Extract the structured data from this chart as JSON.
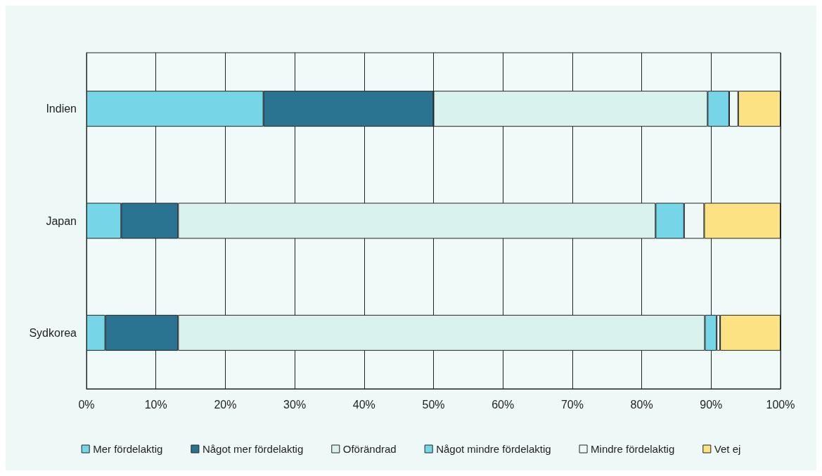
{
  "chart_data": {
    "type": "bar",
    "orientation": "horizontal",
    "stacked": true,
    "categories": [
      "Indien",
      "Japan",
      "Sydkorea"
    ],
    "series": [
      {
        "name": "Mer fördelaktig",
        "color": "#76d6e8",
        "values": [
          25.5,
          5.0,
          2.7
        ]
      },
      {
        "name": "Något mer fördelaktig",
        "color": "#2a7491",
        "values": [
          24.5,
          8.2,
          10.5
        ]
      },
      {
        "name": "Oförändrad",
        "color": "#d9f2ee",
        "values": [
          39.5,
          68.8,
          75.9
        ]
      },
      {
        "name": "Något mindre fördelaktig",
        "color": "#76d6e8",
        "values": [
          3.1,
          4.1,
          1.7
        ]
      },
      {
        "name": "Mindre fördelaktig",
        "color": "#eef8f6",
        "values": [
          1.3,
          2.9,
          0.5
        ]
      },
      {
        "name": "Vet ej",
        "color": "#fde283",
        "values": [
          6.1,
          11.0,
          8.7
        ]
      }
    ],
    "xlim": [
      0,
      100
    ],
    "xticks": [
      {
        "value": 0,
        "label": "0%"
      },
      {
        "value": 10,
        "label": "10%"
      },
      {
        "value": 20,
        "label": "20%"
      },
      {
        "value": 30,
        "label": "30%"
      },
      {
        "value": 40,
        "label": "40%"
      },
      {
        "value": 50,
        "label": "50%"
      },
      {
        "value": 60,
        "label": "60%"
      },
      {
        "value": 70,
        "label": "70%"
      },
      {
        "value": 80,
        "label": "80%"
      },
      {
        "value": 90,
        "label": "90%"
      },
      {
        "value": 100,
        "label": "100%"
      }
    ],
    "grid": "x",
    "legend": "bottom"
  }
}
